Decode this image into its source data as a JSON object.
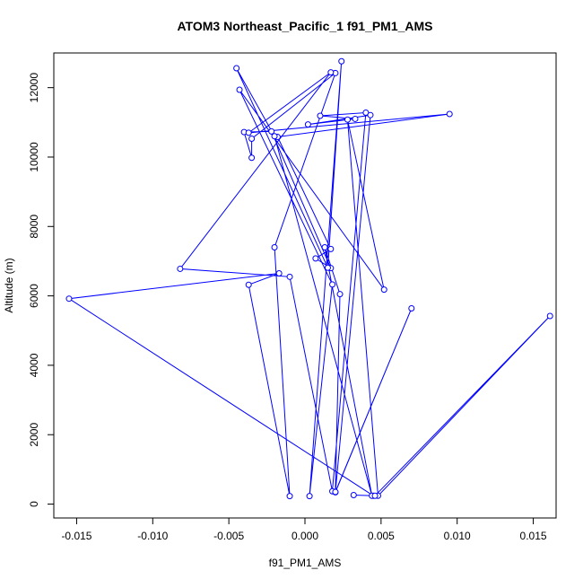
{
  "chart_data": {
    "type": "line",
    "title": "ATOM3 Northeast_Pacific_1 f91_PM1_AMS",
    "xlabel": "f91_PM1_AMS",
    "ylabel": "Altitude (m)",
    "xlim": [
      -0.0165,
      0.0165
    ],
    "ylim": [
      -400,
      13000
    ],
    "x_ticks": [
      -0.015,
      -0.01,
      -0.005,
      0.0,
      0.005,
      0.01,
      0.015
    ],
    "x_tick_labels": [
      "-0.015",
      "-0.010",
      "-0.005",
      "0.000",
      "0.005",
      "0.010",
      "0.015"
    ],
    "y_ticks": [
      0,
      2000,
      4000,
      6000,
      8000,
      10000,
      12000
    ],
    "y_tick_labels": [
      "0",
      "2000",
      "4000",
      "6000",
      "8000",
      "10000",
      "12000"
    ],
    "grid": false,
    "marker": "open-circle",
    "series_color": "#0000ff",
    "points": [
      {
        "x": 0.0045,
        "y": 240
      },
      {
        "x": -0.0155,
        "y": 5920
      },
      {
        "x": -0.0017,
        "y": 6650
      },
      {
        "x": -0.0037,
        "y": 6320
      },
      {
        "x": -0.001,
        "y": 230
      },
      {
        "x": -0.002,
        "y": 7400
      },
      {
        "x": 0.002,
        "y": 12420
      },
      {
        "x": -0.0035,
        "y": 10530
      },
      {
        "x": -0.0035,
        "y": 9980
      },
      {
        "x": -0.004,
        "y": 10720
      },
      {
        "x": -0.0022,
        "y": 10740
      },
      {
        "x": 0.0017,
        "y": 6800
      },
      {
        "x": 0.0007,
        "y": 7080
      },
      {
        "x": 0.0017,
        "y": 7350
      },
      {
        "x": -0.0018,
        "y": 10580
      },
      {
        "x": 0.0095,
        "y": 11240
      },
      {
        "x": -0.0037,
        "y": 10700
      },
      {
        "x": 0.0017,
        "y": 12440
      },
      {
        "x": -0.0082,
        "y": 6780
      },
      {
        "x": -0.001,
        "y": 6550
      },
      {
        "x": 0.0018,
        "y": 370
      },
      {
        "x": 0.004,
        "y": 11280
      },
      {
        "x": 0.001,
        "y": 11190
      },
      {
        "x": 0.0033,
        "y": 11100
      },
      {
        "x": 0.0002,
        "y": 10940
      },
      {
        "x": 0.0043,
        "y": 11210
      },
      {
        "x": 0.002,
        "y": 340
      },
      {
        "x": 0.007,
        "y": 5640
      },
      {
        "x": 0.002,
        "y": 350
      },
      {
        "x": 0.0023,
        "y": 6050
      },
      {
        "x": 0.0013,
        "y": 7400
      },
      {
        "x": 0.0044,
        "y": 240
      },
      {
        "x": -0.002,
        "y": 10600
      },
      {
        "x": -0.0045,
        "y": 12560
      },
      {
        "x": 0.0015,
        "y": 6810
      },
      {
        "x": 0.0024,
        "y": 12760
      },
      {
        "x": 0.0003,
        "y": 230
      },
      {
        "x": 0.0018,
        "y": 6330
      },
      {
        "x": -0.0043,
        "y": 11940
      },
      {
        "x": 0.0052,
        "y": 6180
      },
      {
        "x": 0.0028,
        "y": 11080
      },
      {
        "x": 0.0048,
        "y": 240
      },
      {
        "x": 0.0161,
        "y": 5420
      },
      {
        "x": 0.0046,
        "y": 240
      },
      {
        "x": 0.0032,
        "y": 260
      }
    ]
  }
}
